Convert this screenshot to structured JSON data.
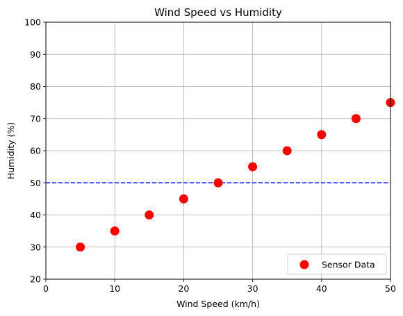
{
  "chart_data": {
    "type": "scatter",
    "title": "Wind Speed vs Humidity",
    "xlabel": "Wind Speed (km/h)",
    "ylabel": "Humidity (%)",
    "xlim": [
      0,
      50
    ],
    "ylim": [
      20,
      100
    ],
    "xticks": [
      0,
      10,
      20,
      30,
      40,
      50
    ],
    "yticks": [
      20,
      30,
      40,
      50,
      60,
      70,
      80,
      90,
      100
    ],
    "grid": true,
    "legend_placement": "lower-right",
    "series": [
      {
        "name": "Sensor Data",
        "color": "#ff0000",
        "x": [
          5,
          10,
          15,
          20,
          25,
          30,
          35,
          40,
          45,
          50
        ],
        "y": [
          30,
          35,
          40,
          45,
          50,
          55,
          60,
          65,
          70,
          75
        ]
      }
    ],
    "reference_line": {
      "orientation": "horizontal",
      "y": 50,
      "color": "#0000ff",
      "style": "dashed"
    }
  }
}
